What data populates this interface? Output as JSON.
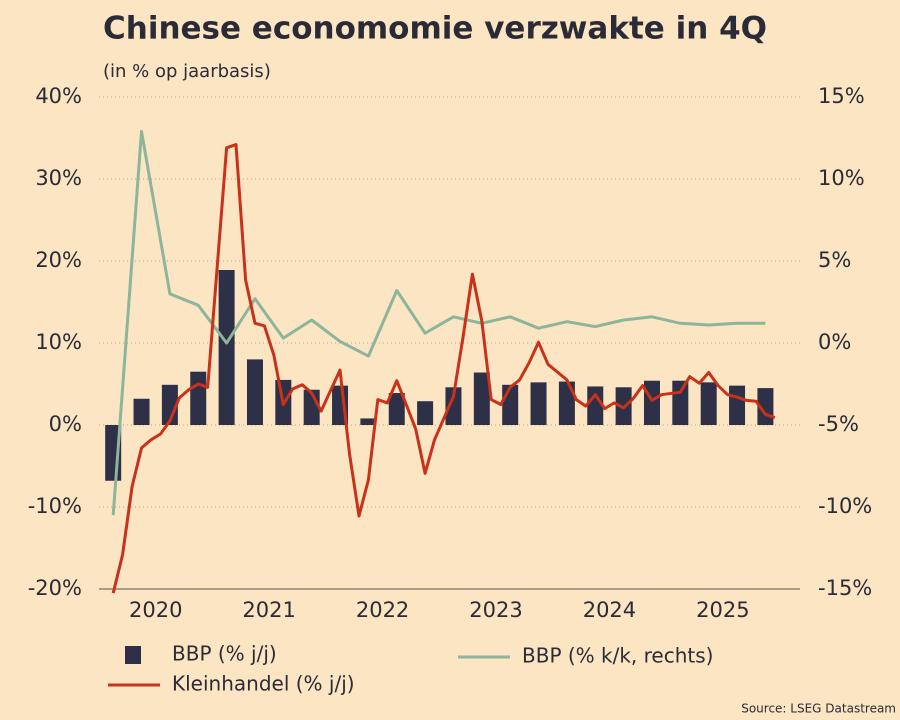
{
  "chart_data": {
    "type": "bar-line",
    "title": "Chinese economomie verzwakte in 4Q",
    "subtitle": "(in % op jaarbasis)",
    "source": "Source: LSEG Datastream",
    "xlim": [
      2020,
      2026.18
    ],
    "xticks": [
      {
        "value": 2020.5,
        "label": "2020"
      },
      {
        "value": 2021.5,
        "label": "2021"
      },
      {
        "value": 2022.5,
        "label": "2022"
      },
      {
        "value": 2023.5,
        "label": "2023"
      },
      {
        "value": 2024.5,
        "label": "2024"
      },
      {
        "value": 2025.5,
        "label": "2025"
      }
    ],
    "ylim": [
      -20,
      40
    ],
    "yticks": [
      {
        "value": -20,
        "label": "-20%"
      },
      {
        "value": -10,
        "label": "-10%"
      },
      {
        "value": 0,
        "label": "0%"
      },
      {
        "value": 10,
        "label": "10%"
      },
      {
        "value": 20,
        "label": "20%"
      },
      {
        "value": 30,
        "label": "30%"
      },
      {
        "value": 40,
        "label": "40%"
      }
    ],
    "y2lim": [
      -15,
      15
    ],
    "y2ticks": [
      {
        "value": -15,
        "label": "-15%"
      },
      {
        "value": -10,
        "label": "-10%"
      },
      {
        "value": -5,
        "label": "-5%"
      },
      {
        "value": 0,
        "label": "0%"
      },
      {
        "value": 5,
        "label": "5%"
      },
      {
        "value": 10,
        "label": "10%"
      },
      {
        "value": 15,
        "label": "15%"
      }
    ],
    "grid": true,
    "series": [
      {
        "name": "BBP (% j/j)",
        "type": "bar",
        "color": "#2e3047",
        "x": [
          2020.125,
          2020.375,
          2020.625,
          2020.875,
          2021.125,
          2021.375,
          2021.625,
          2021.875,
          2022.125,
          2022.375,
          2022.625,
          2022.875,
          2023.125,
          2023.375,
          2023.625,
          2023.875,
          2024.125,
          2024.375,
          2024.625,
          2024.875,
          2025.125,
          2025.375,
          2025.625,
          2025.875
        ],
        "values": [
          -6.8,
          3.2,
          4.9,
          6.5,
          18.9,
          8.0,
          5.5,
          4.3,
          4.8,
          0.8,
          3.9,
          2.9,
          4.6,
          6.4,
          4.9,
          5.2,
          5.3,
          4.7,
          4.6,
          5.4,
          5.4,
          5.2,
          4.8,
          4.5
        ]
      },
      {
        "name": "BBP (% k/k, rechts)",
        "type": "line",
        "axis": "y2",
        "color": "#8cb59c",
        "x": [
          2020.125,
          2020.375,
          2020.625,
          2020.875,
          2021.125,
          2021.375,
          2021.625,
          2021.875,
          2022.125,
          2022.375,
          2022.625,
          2022.875,
          2023.125,
          2023.375,
          2023.625,
          2023.875,
          2024.125,
          2024.375,
          2024.625,
          2024.875,
          2025.125,
          2025.375,
          2025.625,
          2025.875
        ],
        "values": [
          -10.5,
          12.9,
          3.0,
          2.3,
          0.0,
          2.7,
          0.3,
          1.4,
          0.1,
          -0.8,
          3.2,
          0.6,
          1.6,
          1.2,
          1.6,
          0.9,
          1.3,
          1.0,
          1.4,
          1.6,
          1.2,
          1.1,
          1.2,
          1.2
        ]
      },
      {
        "name": "Kleinhandel (% j/j)",
        "type": "line",
        "color": "#c8321a",
        "x": [
          2020.125,
          2020.208,
          2020.292,
          2020.375,
          2020.458,
          2020.542,
          2020.625,
          2020.708,
          2020.792,
          2020.875,
          2020.958,
          2021.125,
          2021.208,
          2021.292,
          2021.375,
          2021.458,
          2021.542,
          2021.625,
          2021.708,
          2021.792,
          2021.875,
          2021.958,
          2022.125,
          2022.208,
          2022.292,
          2022.375,
          2022.458,
          2022.542,
          2022.625,
          2022.708,
          2022.792,
          2022.875,
          2022.958,
          2023.125,
          2023.208,
          2023.292,
          2023.375,
          2023.458,
          2023.542,
          2023.625,
          2023.708,
          2023.792,
          2023.875,
          2023.958,
          2024.125,
          2024.208,
          2024.292,
          2024.375,
          2024.458,
          2024.542,
          2024.625,
          2024.708,
          2024.792,
          2024.875,
          2024.958,
          2025.125,
          2025.208,
          2025.292,
          2025.375,
          2025.458,
          2025.542,
          2025.625,
          2025.708,
          2025.792,
          2025.875,
          2025.958
        ],
        "values": [
          -20.5,
          -15.8,
          -7.5,
          -2.8,
          -1.8,
          -1.1,
          0.5,
          3.3,
          4.3,
          5.0,
          4.6,
          33.8,
          34.2,
          17.7,
          12.4,
          12.1,
          8.5,
          2.5,
          4.4,
          4.9,
          3.9,
          1.7,
          6.7,
          -3.5,
          -11.1,
          -6.7,
          3.1,
          2.7,
          5.4,
          2.5,
          -0.5,
          -5.9,
          -1.8,
          3.5,
          10.6,
          18.4,
          12.7,
          3.1,
          2.5,
          4.6,
          5.5,
          7.6,
          10.1,
          7.4,
          5.5,
          3.1,
          2.3,
          3.7,
          2.0,
          2.7,
          2.1,
          3.2,
          4.8,
          3.0,
          3.7,
          4.0,
          5.9,
          5.1,
          6.4,
          4.8,
          3.7,
          3.4,
          3.0,
          2.9,
          1.3,
          0.9
        ]
      }
    ]
  }
}
